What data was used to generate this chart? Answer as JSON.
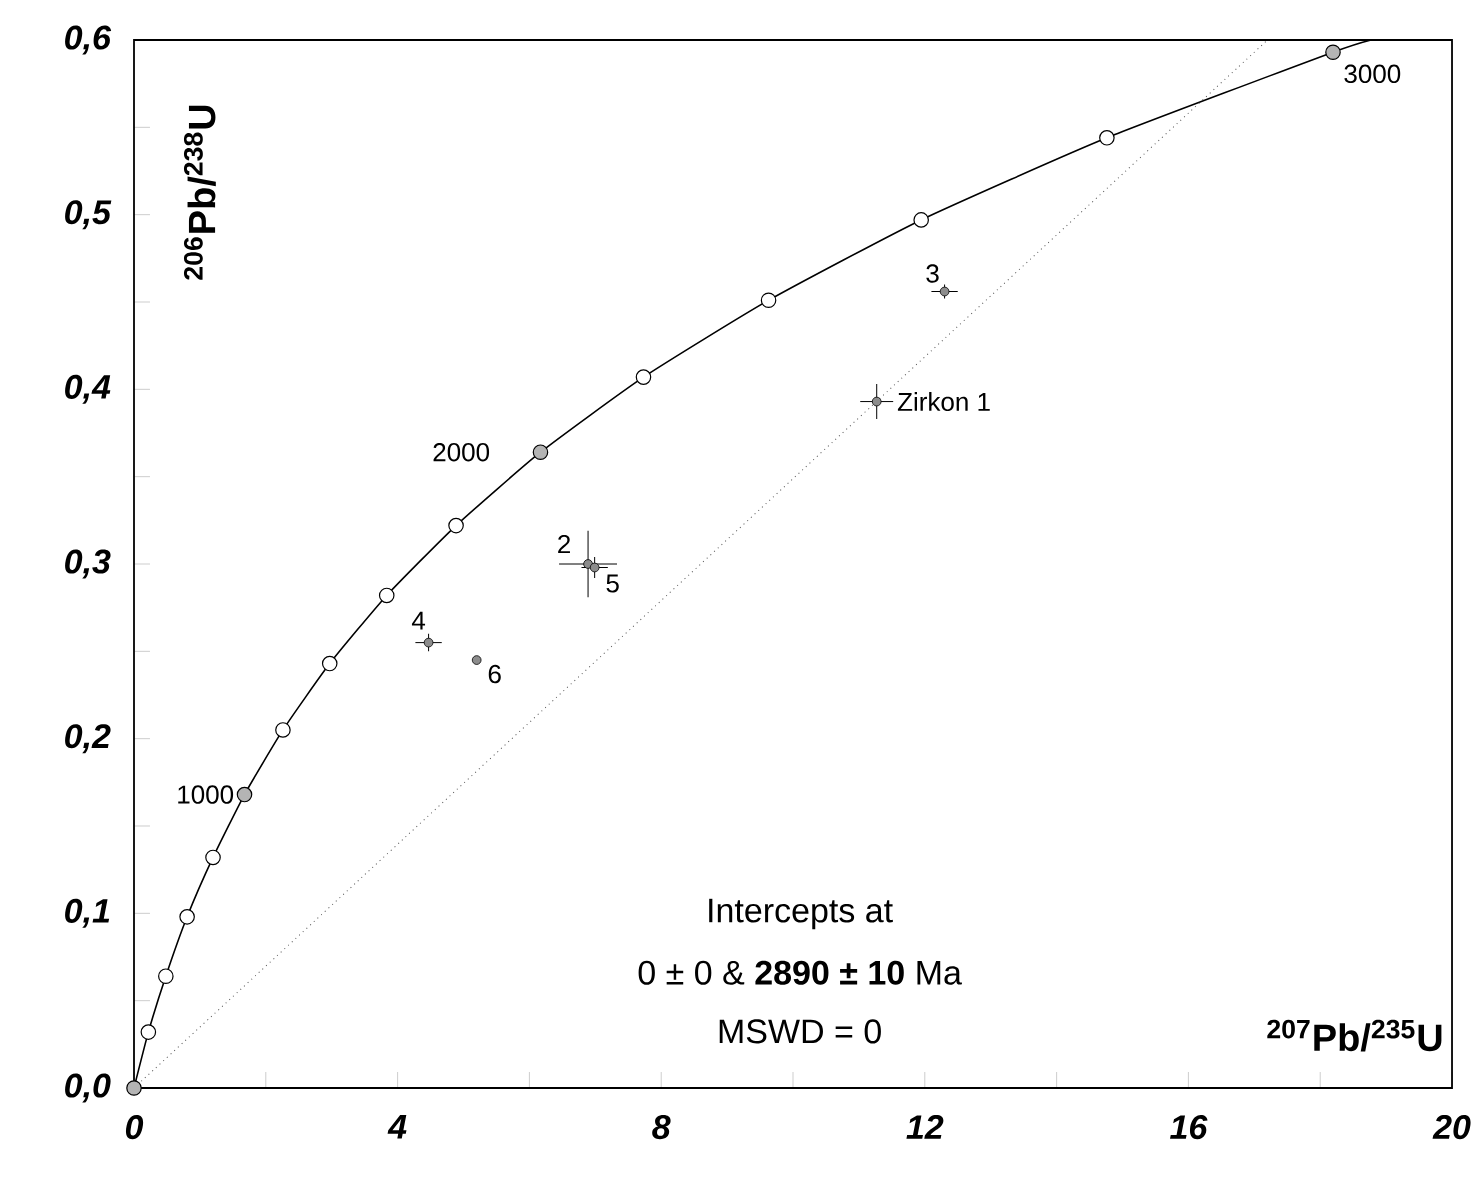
{
  "chart_data": {
    "type": "scatter",
    "xlabel": "$^{207}$Pb/$^{235}$U",
    "ylabel": "$^{206}$Pb/$^{238}$U",
    "xlim": [
      0,
      20
    ],
    "ylim": [
      0,
      0.6
    ],
    "xticks": [
      0,
      4,
      8,
      12,
      16,
      20
    ],
    "yticks": [
      {
        "value": 0,
        "label": "0,0"
      },
      {
        "value": 0.1,
        "label": "0,1"
      },
      {
        "value": 0.2,
        "label": "0,2"
      },
      {
        "value": 0.3,
        "label": "0,3"
      },
      {
        "value": 0.4,
        "label": "0,4"
      },
      {
        "value": 0.5,
        "label": "0,5"
      },
      {
        "value": 0.6,
        "label": "0,6"
      }
    ],
    "grid": false,
    "series": [
      {
        "type": "line",
        "color": "#000000",
        "line_style": "solid",
        "x": [
          0,
          0.218,
          0.483,
          0.806,
          1.199,
          1.677,
          2.26,
          2.97,
          3.835,
          4.887,
          6.168,
          7.731,
          9.629,
          11.945,
          14.763,
          18.194,
          18.77
        ],
        "values": [
          0,
          0.032,
          0.064,
          0.098,
          0.132,
          0.168,
          0.205,
          0.243,
          0.282,
          0.322,
          0.364,
          0.407,
          0.451,
          0.497,
          0.544,
          0.593,
          0.6
        ]
      },
      {
        "type": "line",
        "color": "#555555",
        "line_style": "dotted",
        "x": [
          0,
          17.2
        ],
        "values": [
          0,
          0.6
        ]
      },
      {
        "marker": "circle",
        "x": [
          0,
          0.218,
          0.483,
          0.806,
          1.199,
          1.677,
          2.26,
          2.97,
          3.835,
          4.887,
          6.168,
          7.731,
          9.629,
          11.945,
          14.763,
          18.194
        ],
        "values": [
          0,
          0.032,
          0.064,
          0.098,
          0.132,
          0.168,
          0.205,
          0.243,
          0.282,
          0.322,
          0.364,
          0.407,
          0.451,
          0.497,
          0.544,
          0.593
        ],
        "colors": [
          "#b4b4b4",
          "#ffffff",
          "#ffffff",
          "#ffffff",
          "#ffffff",
          "#b4b4b4",
          "#ffffff",
          "#ffffff",
          "#ffffff",
          "#ffffff",
          "#b4b4b4",
          "#ffffff",
          "#ffffff",
          "#ffffff",
          "#ffffff",
          "#b4b4b4"
        ]
      },
      {
        "marker": "circle",
        "color": "#8c8c8c",
        "x": [
          11.27,
          6.89,
          12.3,
          4.47,
          6.99,
          5.2
        ],
        "values": [
          0.393,
          0.3,
          0.456,
          0.255,
          0.298,
          0.245
        ],
        "xerrors": [
          0.25,
          0.44,
          0.2,
          0.2,
          0.2,
          0.05
        ],
        "errors": [
          0.01,
          0.019,
          0.004,
          0.005,
          0.006,
          0.002
        ]
      }
    ],
    "annotations": [
      {
        "text": "1000",
        "x": 1.677,
        "y": 0.168
      },
      {
        "text": "2000",
        "x": 6.168,
        "y": 0.364
      },
      {
        "text": "3000",
        "x": 18.194,
        "y": 0.593
      },
      {
        "text": "Zirkon 1",
        "x": 11.27,
        "y": 0.393
      },
      {
        "text": "2",
        "x": 6.89,
        "y": 0.3
      },
      {
        "text": "3",
        "x": 12.3,
        "y": 0.456
      },
      {
        "text": "4",
        "x": 4.47,
        "y": 0.255
      },
      {
        "text": "5",
        "x": 6.99,
        "y": 0.298
      },
      {
        "text": "6",
        "x": 5.2,
        "y": 0.245
      },
      "Intercepts at",
      "0 ± 0  &  **2890 ± 10**  Ma",
      "MSWD = 0"
    ]
  }
}
